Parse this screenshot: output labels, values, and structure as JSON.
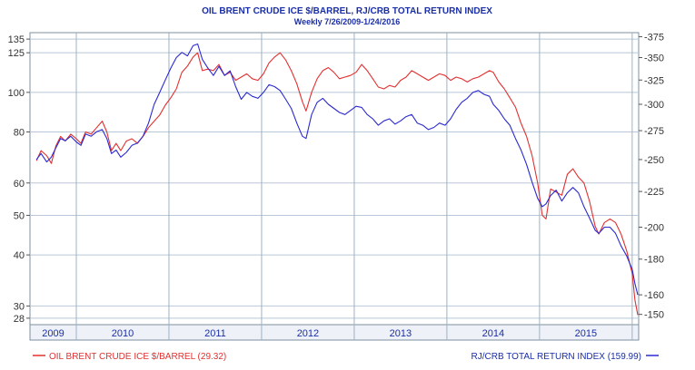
{
  "chart_data": {
    "type": "line",
    "title": "OIL   BRENT CRUDE ICE $/BARREL, RJ/CRB TOTAL RETURN INDEX",
    "subtitle": "Weekly 7/26/2009-1/24/2016",
    "left_axis": {
      "scale": "log",
      "ylim": [
        27,
        140
      ],
      "ticks": [
        28,
        30,
        40,
        50,
        60,
        80,
        100,
        125,
        135
      ]
    },
    "right_axis": {
      "scale": "log",
      "ylim": [
        145,
        380
      ],
      "ticks": [
        150,
        160,
        180,
        200,
        225,
        250,
        275,
        300,
        325,
        350,
        375
      ]
    },
    "xlim": [
      2009.5,
      2016.07
    ],
    "year_ticks": [
      2010,
      2011,
      2012,
      2013,
      2014,
      2015,
      2016
    ],
    "year_labels": [
      "2009",
      "2010",
      "2011",
      "2012",
      "2013",
      "2014",
      "2015"
    ],
    "grid": true,
    "series": [
      {
        "name": "OIL   BRENT CRUDE ICE $/BARREL (29.32)",
        "axis": "left",
        "color": "#e23030",
        "points": [
          [
            2009.57,
            68
          ],
          [
            2009.62,
            72
          ],
          [
            2009.68,
            70
          ],
          [
            2009.73,
            67
          ],
          [
            2009.78,
            74
          ],
          [
            2009.83,
            78
          ],
          [
            2009.88,
            76
          ],
          [
            2009.94,
            79
          ],
          [
            2010.0,
            77
          ],
          [
            2010.05,
            75
          ],
          [
            2010.1,
            80
          ],
          [
            2010.16,
            79
          ],
          [
            2010.22,
            82
          ],
          [
            2010.28,
            85
          ],
          [
            2010.33,
            80
          ],
          [
            2010.38,
            72
          ],
          [
            2010.43,
            75
          ],
          [
            2010.48,
            72
          ],
          [
            2010.54,
            76
          ],
          [
            2010.6,
            77
          ],
          [
            2010.66,
            75
          ],
          [
            2010.72,
            78
          ],
          [
            2010.78,
            82
          ],
          [
            2010.84,
            85
          ],
          [
            2010.9,
            88
          ],
          [
            2010.96,
            93
          ],
          [
            2011.02,
            97
          ],
          [
            2011.08,
            102
          ],
          [
            2011.14,
            112
          ],
          [
            2011.2,
            116
          ],
          [
            2011.26,
            122
          ],
          [
            2011.31,
            125
          ],
          [
            2011.36,
            113
          ],
          [
            2011.42,
            114
          ],
          [
            2011.48,
            113
          ],
          [
            2011.54,
            117
          ],
          [
            2011.6,
            110
          ],
          [
            2011.66,
            112
          ],
          [
            2011.72,
            107
          ],
          [
            2011.78,
            109
          ],
          [
            2011.84,
            111
          ],
          [
            2011.9,
            108
          ],
          [
            2011.96,
            107
          ],
          [
            2012.02,
            111
          ],
          [
            2012.08,
            118
          ],
          [
            2012.14,
            122
          ],
          [
            2012.2,
            125
          ],
          [
            2012.26,
            120
          ],
          [
            2012.32,
            113
          ],
          [
            2012.38,
            105
          ],
          [
            2012.44,
            95
          ],
          [
            2012.48,
            90
          ],
          [
            2012.54,
            100
          ],
          [
            2012.6,
            108
          ],
          [
            2012.66,
            113
          ],
          [
            2012.72,
            115
          ],
          [
            2012.78,
            112
          ],
          [
            2012.84,
            108
          ],
          [
            2012.9,
            109
          ],
          [
            2012.96,
            110
          ],
          [
            2013.02,
            112
          ],
          [
            2013.08,
            117
          ],
          [
            2013.14,
            113
          ],
          [
            2013.2,
            108
          ],
          [
            2013.26,
            103
          ],
          [
            2013.32,
            102
          ],
          [
            2013.38,
            104
          ],
          [
            2013.44,
            103
          ],
          [
            2013.5,
            107
          ],
          [
            2013.56,
            109
          ],
          [
            2013.62,
            113
          ],
          [
            2013.68,
            111
          ],
          [
            2013.74,
            109
          ],
          [
            2013.8,
            107
          ],
          [
            2013.86,
            109
          ],
          [
            2013.92,
            111
          ],
          [
            2013.98,
            110
          ],
          [
            2014.04,
            107
          ],
          [
            2014.1,
            109
          ],
          [
            2014.16,
            108
          ],
          [
            2014.22,
            106
          ],
          [
            2014.28,
            108
          ],
          [
            2014.34,
            109
          ],
          [
            2014.4,
            111
          ],
          [
            2014.46,
            113
          ],
          [
            2014.5,
            112
          ],
          [
            2014.56,
            106
          ],
          [
            2014.62,
            102
          ],
          [
            2014.68,
            97
          ],
          [
            2014.74,
            92
          ],
          [
            2014.8,
            84
          ],
          [
            2014.86,
            78
          ],
          [
            2014.92,
            70
          ],
          [
            2014.98,
            60
          ],
          [
            2015.03,
            50
          ],
          [
            2015.07,
            49
          ],
          [
            2015.12,
            58
          ],
          [
            2015.18,
            57
          ],
          [
            2015.24,
            56
          ],
          [
            2015.3,
            63
          ],
          [
            2015.36,
            65
          ],
          [
            2015.42,
            62
          ],
          [
            2015.48,
            60
          ],
          [
            2015.54,
            54
          ],
          [
            2015.6,
            47
          ],
          [
            2015.64,
            45
          ],
          [
            2015.7,
            48
          ],
          [
            2015.76,
            49
          ],
          [
            2015.82,
            48
          ],
          [
            2015.88,
            45
          ],
          [
            2015.94,
            41
          ],
          [
            2016.0,
            36
          ],
          [
            2016.03,
            31
          ],
          [
            2016.06,
            28.5
          ]
        ]
      },
      {
        "name": "RJ/CRB TOTAL RETURN INDEX (159.99)",
        "axis": "right",
        "color": "#2a2ad0",
        "points": [
          [
            2009.57,
            250
          ],
          [
            2009.62,
            255
          ],
          [
            2009.68,
            248
          ],
          [
            2009.73,
            252
          ],
          [
            2009.78,
            260
          ],
          [
            2009.83,
            268
          ],
          [
            2009.88,
            266
          ],
          [
            2009.94,
            270
          ],
          [
            2010.0,
            265
          ],
          [
            2010.05,
            262
          ],
          [
            2010.1,
            272
          ],
          [
            2010.16,
            270
          ],
          [
            2010.22,
            274
          ],
          [
            2010.28,
            276
          ],
          [
            2010.33,
            268
          ],
          [
            2010.38,
            255
          ],
          [
            2010.43,
            258
          ],
          [
            2010.48,
            252
          ],
          [
            2010.54,
            256
          ],
          [
            2010.6,
            262
          ],
          [
            2010.66,
            264
          ],
          [
            2010.72,
            270
          ],
          [
            2010.78,
            282
          ],
          [
            2010.84,
            300
          ],
          [
            2010.9,
            312
          ],
          [
            2010.96,
            325
          ],
          [
            2011.02,
            338
          ],
          [
            2011.08,
            350
          ],
          [
            2011.14,
            356
          ],
          [
            2011.2,
            352
          ],
          [
            2011.26,
            364
          ],
          [
            2011.31,
            366
          ],
          [
            2011.36,
            348
          ],
          [
            2011.42,
            338
          ],
          [
            2011.48,
            330
          ],
          [
            2011.54,
            340
          ],
          [
            2011.6,
            330
          ],
          [
            2011.66,
            335
          ],
          [
            2011.72,
            318
          ],
          [
            2011.78,
            305
          ],
          [
            2011.84,
            312
          ],
          [
            2011.9,
            308
          ],
          [
            2011.96,
            306
          ],
          [
            2012.02,
            312
          ],
          [
            2012.08,
            320
          ],
          [
            2012.14,
            318
          ],
          [
            2012.2,
            314
          ],
          [
            2012.26,
            305
          ],
          [
            2012.32,
            296
          ],
          [
            2012.38,
            282
          ],
          [
            2012.44,
            270
          ],
          [
            2012.48,
            268
          ],
          [
            2012.54,
            290
          ],
          [
            2012.6,
            302
          ],
          [
            2012.66,
            306
          ],
          [
            2012.72,
            300
          ],
          [
            2012.78,
            296
          ],
          [
            2012.84,
            292
          ],
          [
            2012.9,
            290
          ],
          [
            2012.96,
            294
          ],
          [
            2013.02,
            298
          ],
          [
            2013.08,
            297
          ],
          [
            2013.14,
            290
          ],
          [
            2013.2,
            286
          ],
          [
            2013.26,
            280
          ],
          [
            2013.32,
            284
          ],
          [
            2013.38,
            286
          ],
          [
            2013.44,
            281
          ],
          [
            2013.5,
            284
          ],
          [
            2013.56,
            288
          ],
          [
            2013.62,
            290
          ],
          [
            2013.68,
            282
          ],
          [
            2013.74,
            280
          ],
          [
            2013.8,
            276
          ],
          [
            2013.86,
            278
          ],
          [
            2013.92,
            282
          ],
          [
            2013.98,
            280
          ],
          [
            2014.04,
            286
          ],
          [
            2014.1,
            295
          ],
          [
            2014.16,
            302
          ],
          [
            2014.22,
            306
          ],
          [
            2014.28,
            312
          ],
          [
            2014.34,
            314
          ],
          [
            2014.4,
            310
          ],
          [
            2014.46,
            308
          ],
          [
            2014.5,
            300
          ],
          [
            2014.56,
            294
          ],
          [
            2014.62,
            286
          ],
          [
            2014.68,
            280
          ],
          [
            2014.74,
            268
          ],
          [
            2014.8,
            258
          ],
          [
            2014.86,
            246
          ],
          [
            2014.92,
            232
          ],
          [
            2014.98,
            220
          ],
          [
            2015.03,
            214
          ],
          [
            2015.07,
            216
          ],
          [
            2015.12,
            222
          ],
          [
            2015.18,
            226
          ],
          [
            2015.24,
            218
          ],
          [
            2015.3,
            224
          ],
          [
            2015.36,
            228
          ],
          [
            2015.42,
            224
          ],
          [
            2015.48,
            214
          ],
          [
            2015.54,
            206
          ],
          [
            2015.6,
            198
          ],
          [
            2015.64,
            196
          ],
          [
            2015.7,
            200
          ],
          [
            2015.76,
            200
          ],
          [
            2015.82,
            196
          ],
          [
            2015.88,
            188
          ],
          [
            2015.94,
            182
          ],
          [
            2016.0,
            174
          ],
          [
            2016.03,
            166
          ],
          [
            2016.06,
            160
          ]
        ]
      }
    ],
    "legend": {
      "left": "OIL   BRENT CRUDE ICE $/BARREL (29.32)",
      "right": "RJ/CRB TOTAL RETURN INDEX (159.99)",
      "placement": "bottom"
    }
  }
}
